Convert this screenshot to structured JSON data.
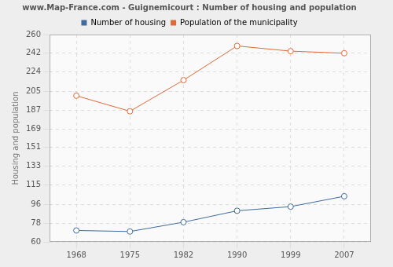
{
  "chart_data": {
    "type": "line",
    "title": "www.Map-France.com - Guignemicourt : Number of housing and population",
    "y_label": "Housing and population",
    "categories": [
      "1968",
      "1975",
      "1982",
      "1990",
      "1999",
      "2007"
    ],
    "series": [
      {
        "name": "Number of housing",
        "color": "#3e6b9e",
        "values": [
          71,
          70,
          79,
          90,
          94,
          104
        ]
      },
      {
        "name": "Population of the municipality",
        "color": "#e0693a",
        "values": [
          201,
          186,
          216,
          249,
          244,
          242
        ]
      }
    ],
    "ylim": [
      60,
      260
    ],
    "yticks": [
      60,
      78,
      96,
      115,
      133,
      151,
      169,
      187,
      205,
      224,
      242,
      260
    ],
    "grid": true,
    "legend": "top",
    "marker": "circle",
    "line_style": "solid"
  }
}
